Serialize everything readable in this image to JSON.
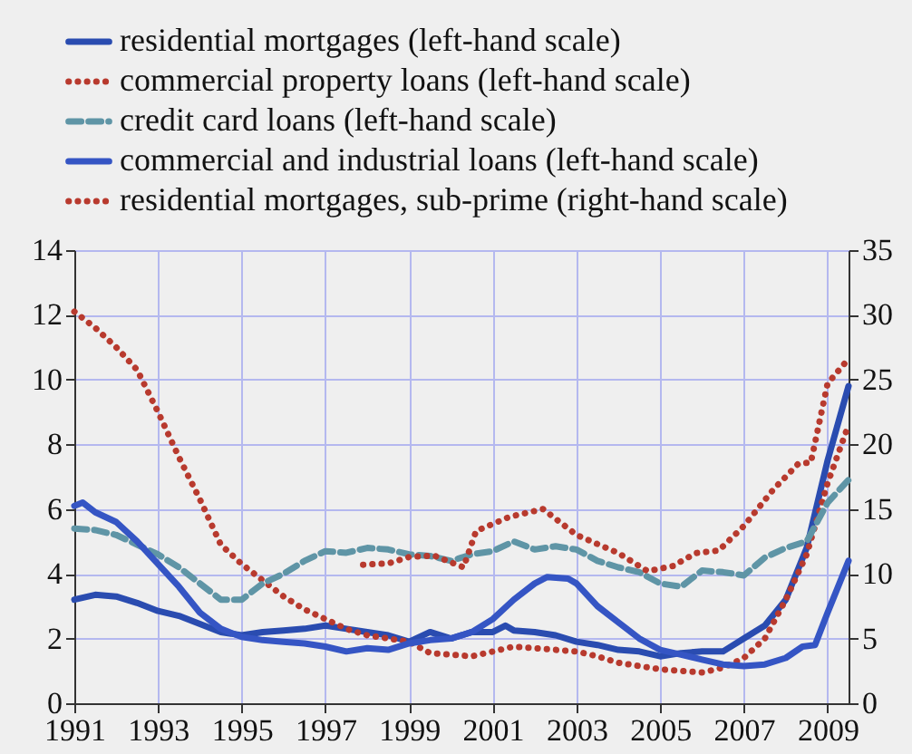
{
  "chart_data": {
    "type": "line",
    "xlim": [
      1991,
      2009.5
    ],
    "xticks": [
      1991,
      1993,
      1995,
      1997,
      1999,
      2001,
      2003,
      2005,
      2007,
      2009
    ],
    "ylim": [
      0,
      14
    ],
    "yticks": [
      0,
      2,
      4,
      6,
      8,
      10,
      12,
      14
    ],
    "y2lim": [
      0,
      35
    ],
    "y2ticks": [
      0,
      5,
      10,
      15,
      20,
      25,
      30,
      35
    ],
    "grid": true,
    "legend": "top left",
    "series": [
      {
        "name": "residential mortgages (left-hand scale)",
        "color": "#2a4cb0",
        "line_style": "solid",
        "x": [
          1991,
          1991.5,
          1992,
          1992.5,
          1993,
          1993.5,
          1994,
          1994.5,
          1995,
          1995.5,
          1996,
          1996.5,
          1997,
          1997.5,
          1998,
          1998.5,
          1999,
          1999.5,
          2000,
          2000.5,
          2001,
          2001.3,
          2001.5,
          2002,
          2002.5,
          2003,
          2003.5,
          2004,
          2004.5,
          2005,
          2005.5,
          2006,
          2006.5,
          2007,
          2007.5,
          2008,
          2008.5,
          2009,
          2009.5
        ],
        "values": [
          3.2,
          3.35,
          3.3,
          3.1,
          2.85,
          2.7,
          2.45,
          2.2,
          2.1,
          2.2,
          2.25,
          2.3,
          2.4,
          2.3,
          2.2,
          2.1,
          1.9,
          2.2,
          2.0,
          2.2,
          2.2,
          2.4,
          2.25,
          2.2,
          2.1,
          1.9,
          1.8,
          1.65,
          1.6,
          1.45,
          1.55,
          1.6,
          1.6,
          2.0,
          2.4,
          3.2,
          4.8,
          7.5,
          9.8
        ]
      },
      {
        "name": "commercial property loans (left-hand scale)",
        "color": "#b83a2e",
        "line_style": "dotted",
        "x": [
          1991,
          1991.5,
          1992,
          1992.5,
          1993,
          1993.5,
          1994,
          1994.5,
          1995,
          1995.5,
          1996,
          1996.5,
          1997,
          1997.5,
          1998,
          1998.5,
          1999,
          1999.5,
          2000,
          2000.5,
          2001,
          2001.5,
          2002,
          2002.5,
          2003,
          2003.5,
          2004,
          2004.5,
          2005,
          2005.5,
          2006,
          2006.5,
          2007,
          2007.5,
          2008,
          2008.5,
          2009,
          2009.5
        ],
        "values": [
          12.1,
          11.6,
          11.0,
          10.3,
          9.0,
          7.6,
          6.3,
          4.9,
          4.3,
          3.8,
          3.3,
          2.9,
          2.6,
          2.3,
          2.1,
          2.0,
          1.9,
          1.55,
          1.5,
          1.45,
          1.6,
          1.75,
          1.7,
          1.65,
          1.6,
          1.45,
          1.25,
          1.15,
          1.05,
          1.0,
          0.95,
          1.1,
          1.4,
          2.0,
          3.2,
          4.6,
          6.8,
          8.6
        ]
      },
      {
        "name": "credit card loans (left-hand scale)",
        "color": "#5f95a6",
        "line_style": "dashed",
        "x": [
          1991,
          1991.5,
          1992,
          1992.5,
          1993,
          1993.5,
          1994,
          1994.5,
          1995,
          1995.5,
          1996,
          1996.5,
          1997,
          1997.5,
          1998,
          1998.5,
          1999,
          1999.5,
          2000,
          2000.5,
          2001,
          2001.5,
          2002,
          2002.5,
          2003,
          2003.5,
          2004,
          2004.5,
          2005,
          2005.5,
          2006,
          2006.5,
          2007,
          2007.5,
          2008,
          2008.5,
          2009,
          2009.5
        ],
        "values": [
          5.4,
          5.35,
          5.2,
          4.9,
          4.6,
          4.2,
          3.7,
          3.2,
          3.2,
          3.7,
          4.0,
          4.4,
          4.7,
          4.65,
          4.8,
          4.75,
          4.6,
          4.55,
          4.4,
          4.6,
          4.7,
          5.0,
          4.75,
          4.85,
          4.75,
          4.4,
          4.2,
          4.05,
          3.7,
          3.6,
          4.1,
          4.05,
          3.95,
          4.5,
          4.8,
          5.0,
          6.2,
          6.9
        ]
      },
      {
        "name": "commercial and industrial loans (left-hand scale)",
        "color": "#3555c4",
        "line_style": "solid",
        "x": [
          1991,
          1991.2,
          1991.5,
          1992,
          1992.5,
          1993,
          1993.5,
          1994,
          1994.5,
          1995,
          1995.5,
          1996,
          1996.5,
          1997,
          1997.5,
          1998,
          1998.5,
          1999,
          1999.5,
          2000,
          2000.5,
          2001,
          2001.5,
          2002,
          2002.3,
          2002.8,
          2003,
          2003.5,
          2004,
          2004.5,
          2005,
          2005.5,
          2006,
          2006.5,
          2007,
          2007.5,
          2008,
          2008.4,
          2008.7,
          2009,
          2009.5
        ],
        "values": [
          6.1,
          6.2,
          5.9,
          5.6,
          5.0,
          4.3,
          3.6,
          2.8,
          2.3,
          2.05,
          1.95,
          1.9,
          1.85,
          1.75,
          1.6,
          1.7,
          1.65,
          1.85,
          1.95,
          2.0,
          2.2,
          2.6,
          3.2,
          3.7,
          3.9,
          3.85,
          3.7,
          3.0,
          2.5,
          2.0,
          1.65,
          1.5,
          1.35,
          1.2,
          1.15,
          1.2,
          1.4,
          1.75,
          1.8,
          2.8,
          4.4
        ]
      },
      {
        "name": "residential mortgages, sub-prime (right-hand scale)",
        "color": "#b83a2e",
        "line_style": "dotted",
        "axis": "y2",
        "x": [
          1997.9,
          1998.5,
          1999,
          1999.6,
          2000.3,
          2000.6,
          2001.4,
          2002.2,
          2003,
          2004,
          2004.7,
          2005.3,
          2005.85,
          2006.4,
          2007,
          2007.7,
          2008.3,
          2008.6,
          2009,
          2009.5
        ],
        "values": [
          10.7,
          10.8,
          11.3,
          11.4,
          10.5,
          13.3,
          14.4,
          15.0,
          13.0,
          11.6,
          10.2,
          10.6,
          11.6,
          11.8,
          13.7,
          16.5,
          18.5,
          18.6,
          24.7,
          26.6
        ]
      }
    ]
  }
}
